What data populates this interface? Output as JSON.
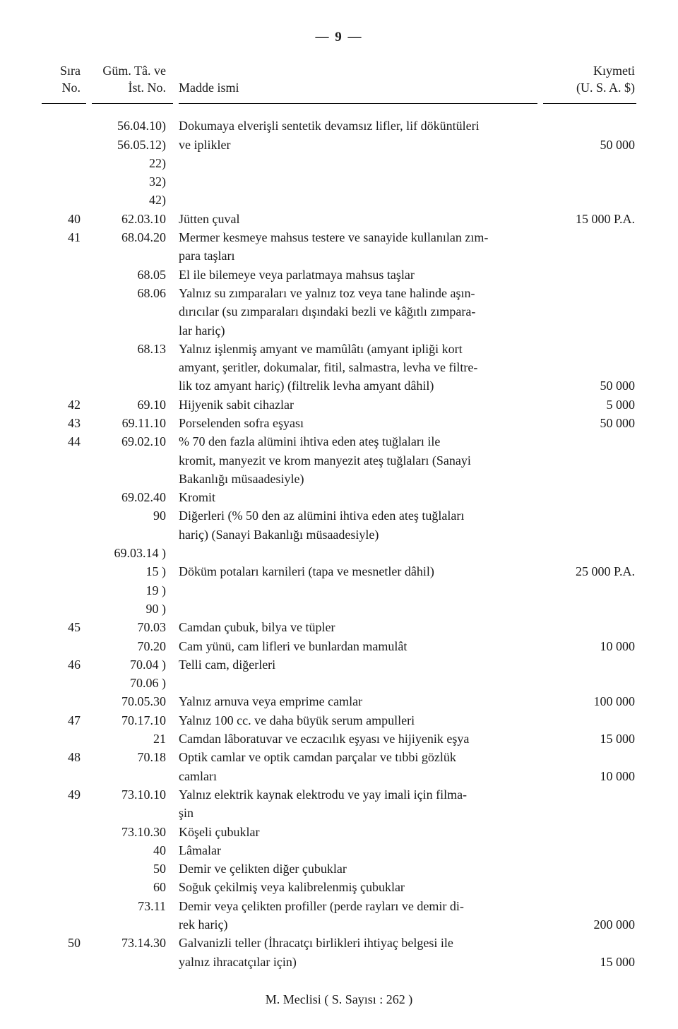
{
  "pageNumber": "— 9 —",
  "headers": {
    "sira1": "Sıra",
    "sira2": "No.",
    "gum1": "Güm. Tâ. ve",
    "gum2": "İst.  No.",
    "madde": "Madde ismi",
    "kiy1": "Kıymeti",
    "kiy2": "(U. S. A. $)"
  },
  "r": [
    {
      "s": "",
      "g": "56.04.10)",
      "m": "Dokumaya elverişli sentetik devamsız lifler, lif döküntüleri",
      "k": ""
    },
    {
      "s": "",
      "g": "56.05.12)",
      "m": "ve iplikler",
      "k": "50 000"
    },
    {
      "s": "",
      "g": "22)",
      "m": "",
      "k": ""
    },
    {
      "s": "",
      "g": "32)",
      "m": "",
      "k": ""
    },
    {
      "s": "",
      "g": "42)",
      "m": "",
      "k": ""
    },
    {
      "s": "40",
      "g": "62.03.10",
      "m": "Jütten çuval",
      "k": "15 000 P.A."
    },
    {
      "s": "41",
      "g": "68.04.20",
      "m": "Mermer kesmeye mahsus testere ve sanayide kullanılan zım-",
      "k": ""
    },
    {
      "s": "",
      "g": "",
      "m": "para taşları",
      "k": ""
    },
    {
      "s": "",
      "g": "68.05",
      "m": "El ile bilemeye veya parlatmaya mahsus taşlar",
      "k": ""
    },
    {
      "s": "",
      "g": "68.06",
      "m": "Yalnız su zımparaları ve yalnız toz veya tane halinde aşın-",
      "k": ""
    },
    {
      "s": "",
      "g": "",
      "m": "dırıcılar (su zımparaları dışındaki bezli ve kâğıtlı zımpara-",
      "k": ""
    },
    {
      "s": "",
      "g": "",
      "m": "lar hariç)",
      "k": ""
    },
    {
      "s": "",
      "g": "68.13",
      "m": "Yalnız işlenmiş amyant ve mamûlâtı (amyant ipliği kort",
      "k": ""
    },
    {
      "s": "",
      "g": "",
      "m": "amyant, şeritler, dokumalar, fitil, salmastra, levha ve filtre-",
      "k": ""
    },
    {
      "s": "",
      "g": "",
      "m": "lik toz amyant hariç) (filtrelik levha amyant dâhil)",
      "k": "50 000"
    },
    {
      "s": "42",
      "g": "69.10",
      "m": "Hijyenik sabit cihazlar",
      "k": "5 000"
    },
    {
      "s": "43",
      "g": "69.11.10",
      "m": "Porselenden sofra eşyası",
      "k": "50 000"
    },
    {
      "s": "44",
      "g": "69.02.10",
      "m": "% 70 den fazla alümini ihtiva eden ateş tuğlaları ile",
      "k": ""
    },
    {
      "s": "",
      "g": "",
      "m": "kromit, manyezit ve krom manyezit ateş tuğlaları (Sanayi",
      "k": ""
    },
    {
      "s": "",
      "g": "",
      "m": "Bakanlığı müsaadesiyle)",
      "k": ""
    },
    {
      "s": "",
      "g": "69.02.40",
      "m": "Kromit",
      "k": ""
    },
    {
      "s": "",
      "g": "90",
      "m": "Diğerleri (% 50 den az alümini ihtiva eden ateş tuğlaları",
      "k": ""
    },
    {
      "s": "",
      "g": "",
      "m": "hariç)    (Sanayi Bakanlığı müsaadesiyle)",
      "k": ""
    },
    {
      "s": "",
      "g": "69.03.14   )",
      "m": "",
      "k": ""
    },
    {
      "s": "",
      "g": "15   )",
      "m": "Döküm potaları karnileri   (tapa ve mesnetler dâhil)",
      "k": "25 000 P.A."
    },
    {
      "s": "",
      "g": "19   )",
      "m": "",
      "k": ""
    },
    {
      "s": "",
      "g": "90   )",
      "m": "",
      "k": ""
    },
    {
      "s": "45",
      "g": "70.03",
      "m": "Camdan çubuk, bilya ve tüpler",
      "k": ""
    },
    {
      "s": "",
      "g": "70.20",
      "m": "Cam yünü, cam lifleri ve bunlardan mamulât",
      "k": "10 000"
    },
    {
      "s": "46",
      "g": "70.04    )",
      "m": "Telli cam, diğerleri",
      "k": ""
    },
    {
      "s": "",
      "g": "70.06    )",
      "m": "",
      "k": ""
    },
    {
      "s": "",
      "g": "70.05.30",
      "m": "Yalnız arnuva veya emprime camlar",
      "k": "100 000"
    },
    {
      "s": "47",
      "g": "70.17.10",
      "m": "Yalnız 100 cc. ve daha büyük serum ampulleri",
      "k": ""
    },
    {
      "s": "",
      "g": "21",
      "m": "Camdan lâboratuvar ve eczacılık eşyası ve hijiyenik eşya",
      "k": "15 000"
    },
    {
      "s": "48",
      "g": "70.18",
      "m": "Optik camlar ve optik camdan parçalar ve tıbbi gözlük",
      "k": ""
    },
    {
      "s": "",
      "g": "",
      "m": "camları",
      "k": "10 000"
    },
    {
      "s": "49",
      "g": "73.10.10",
      "m": "Yalnız elektrik kaynak elektrodu ve yay imali için filma-",
      "k": ""
    },
    {
      "s": "",
      "g": "",
      "m": "şin",
      "k": ""
    },
    {
      "s": "",
      "g": "73.10.30",
      "m": "Köşeli çubuklar",
      "k": ""
    },
    {
      "s": "",
      "g": "40",
      "m": "Lâmalar",
      "k": ""
    },
    {
      "s": "",
      "g": "50",
      "m": "Demir ve çelikten diğer çubuklar",
      "k": ""
    },
    {
      "s": "",
      "g": "60",
      "m": "Soğuk çekilmiş veya kalibrelenmiş çubuklar",
      "k": ""
    },
    {
      "s": "",
      "g": "73.11",
      "m": "Demir veya çelikten profiller (perde rayları ve demir di-",
      "k": ""
    },
    {
      "s": "",
      "g": "",
      "m": "rek hariç)",
      "k": "200 000"
    },
    {
      "s": "50",
      "g": "73.14.30",
      "m": "Galvanizli teller (İhracatçı birlikleri ihtiyaç belgesi ile",
      "k": ""
    },
    {
      "s": "",
      "g": "",
      "m": "yalnız ihracatçılar için)",
      "k": "15 000"
    }
  ],
  "footer": "M. Meclisi      ( S. Sayısı : 262 )"
}
